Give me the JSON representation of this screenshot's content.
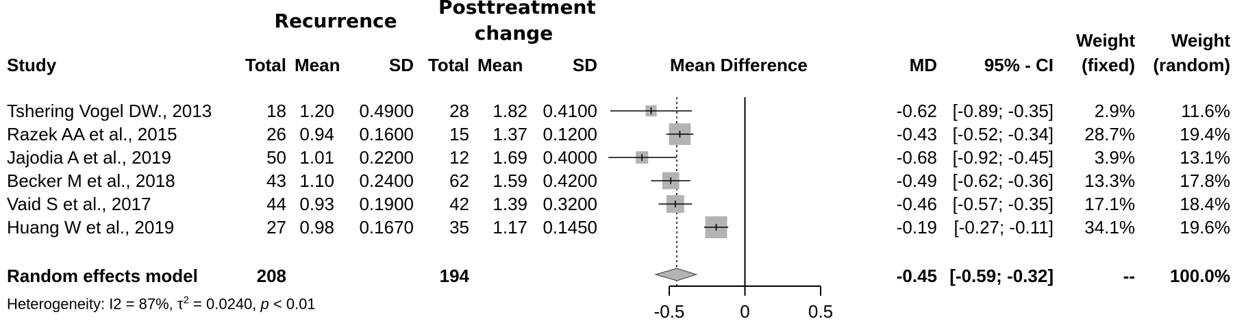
{
  "header": {
    "group_recurrence": "Recurrence",
    "group_post_line1": "Posttreatment",
    "group_post_line2": "change",
    "col_study": "Study",
    "col_total": "Total",
    "col_mean": "Mean",
    "col_sd": "SD",
    "col_plot": "Mean Difference",
    "col_md": "MD",
    "col_ci": "95% - CI",
    "col_wfixed_1": "Weight",
    "col_wfixed_2": "(fixed)",
    "col_wrandom_1": "Weight",
    "col_wrandom_2": "(random)"
  },
  "studies": [
    {
      "name": "Tshering Vogel DW., 2013",
      "rec_total": "18",
      "rec_mean": "1.20",
      "rec_sd": "0.4900",
      "post_total": "28",
      "post_mean": "1.82",
      "post_sd": "0.4100",
      "md": "-0.62",
      "ci": "[-0.89; -0.35]",
      "w_fixed": "2.9%",
      "w_random": "11.6%"
    },
    {
      "name": "Razek AA et al., 2015",
      "rec_total": "26",
      "rec_mean": "0.94",
      "rec_sd": "0.1600",
      "post_total": "15",
      "post_mean": "1.37",
      "post_sd": "0.1200",
      "md": "-0.43",
      "ci": "[-0.52; -0.34]",
      "w_fixed": "28.7%",
      "w_random": "19.4%"
    },
    {
      "name": "Jajodia A et al., 2019",
      "rec_total": "50",
      "rec_mean": "1.01",
      "rec_sd": "0.2200",
      "post_total": "12",
      "post_mean": "1.69",
      "post_sd": "0.4000",
      "md": "-0.68",
      "ci": "[-0.92; -0.45]",
      "w_fixed": "3.9%",
      "w_random": "13.1%"
    },
    {
      "name": "Becker M et al., 2018",
      "rec_total": "43",
      "rec_mean": "1.10",
      "rec_sd": "0.2400",
      "post_total": "62",
      "post_mean": "1.59",
      "post_sd": "0.4200",
      "md": "-0.49",
      "ci": "[-0.62; -0.36]",
      "w_fixed": "13.3%",
      "w_random": "17.8%"
    },
    {
      "name": "Vaid S et al., 2017",
      "rec_total": "44",
      "rec_mean": "0.93",
      "rec_sd": "0.1900",
      "post_total": "42",
      "post_mean": "1.39",
      "post_sd": "0.3200",
      "md": "-0.46",
      "ci": "[-0.57; -0.35]",
      "w_fixed": "17.1%",
      "w_random": "18.4%"
    },
    {
      "name": "Huang W et al., 2019",
      "rec_total": "27",
      "rec_mean": "0.98",
      "rec_sd": "0.1670",
      "post_total": "35",
      "post_mean": "1.17",
      "post_sd": "0.1450",
      "md": "-0.19",
      "ci": "[-0.27; -0.11]",
      "w_fixed": "34.1%",
      "w_random": "19.6%"
    }
  ],
  "summary": {
    "label": "Random effects model",
    "rec_total": "208",
    "post_total": "194",
    "md": "-0.45",
    "ci": "[-0.59; -0.32]",
    "w_fixed": "--",
    "w_random": "100.0%"
  },
  "heterogeneity": {
    "prefix": "Heterogeneity: I2 = 87%, ",
    "tau": "τ",
    "tau_sup": "2",
    "tau_value": " = 0.0240, ",
    "p": "p",
    "p_value": " < 0.01"
  },
  "chart_data": {
    "type": "forest",
    "xlim": [
      -0.5,
      0.5
    ],
    "xticks": [
      -0.5,
      0,
      0.5
    ],
    "xtick_labels": [
      "-0.5",
      "0",
      "0.5"
    ],
    "null_line": 0,
    "studies": [
      {
        "md": -0.62,
        "lower": -0.89,
        "upper": -0.35,
        "weight_random": 11.6
      },
      {
        "md": -0.43,
        "lower": -0.52,
        "upper": -0.34,
        "weight_random": 19.4
      },
      {
        "md": -0.68,
        "lower": -0.92,
        "upper": -0.45,
        "weight_random": 13.1
      },
      {
        "md": -0.49,
        "lower": -0.62,
        "upper": -0.36,
        "weight_random": 17.8
      },
      {
        "md": -0.46,
        "lower": -0.57,
        "upper": -0.35,
        "weight_random": 18.4
      },
      {
        "md": -0.19,
        "lower": -0.27,
        "upper": -0.11,
        "weight_random": 19.6
      }
    ],
    "summary": {
      "md": -0.45,
      "lower": -0.59,
      "upper": -0.32
    },
    "colors": {
      "box": "#b3b3b3",
      "diamond": "#b3b3b3",
      "line": "#000000"
    }
  }
}
